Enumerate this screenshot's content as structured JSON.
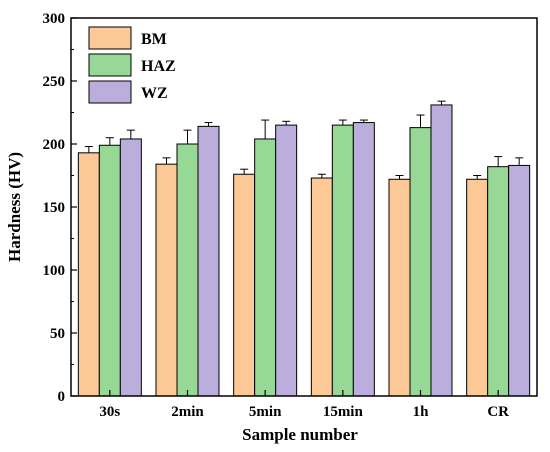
{
  "chart_data": {
    "type": "bar",
    "title": "",
    "xlabel": "Sample number",
    "ylabel": "Hardness (HV)",
    "ylim": [
      0,
      300
    ],
    "yticks": [
      0,
      50,
      100,
      150,
      200,
      250,
      300
    ],
    "categories": [
      "30s",
      "2min",
      "5min",
      "15min",
      "1h",
      "CR"
    ],
    "series": [
      {
        "name": "BM",
        "color": "#FCC896",
        "values": [
          193,
          184,
          176,
          173,
          172,
          172
        ],
        "errors": [
          5,
          5,
          4,
          3,
          3,
          3
        ]
      },
      {
        "name": "HAZ",
        "color": "#97D897",
        "values": [
          199,
          200,
          204,
          215,
          213,
          182
        ],
        "errors": [
          6,
          11,
          15,
          4,
          10,
          8
        ]
      },
      {
        "name": "WZ",
        "color": "#BCAEDC",
        "values": [
          204,
          214,
          215,
          217,
          231,
          183
        ],
        "errors": [
          7,
          3,
          3,
          2,
          3,
          6
        ]
      }
    ],
    "legend_position": "top-left",
    "grid": false
  }
}
